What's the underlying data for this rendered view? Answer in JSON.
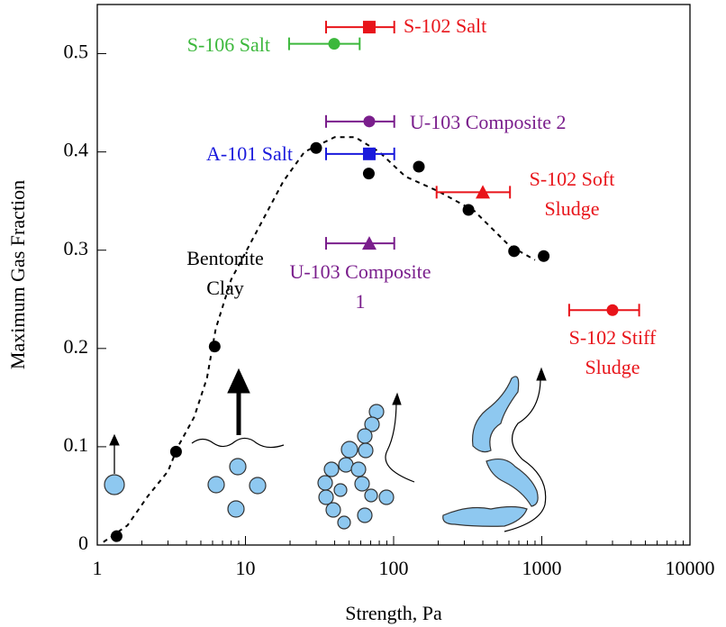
{
  "chart_data": {
    "type": "scatter",
    "x_label": "Strength, Pa",
    "y_label": "Maximum Gas Fraction",
    "xscale": "log",
    "xlim": [
      1,
      10000
    ],
    "ylim": [
      0,
      0.55
    ],
    "xticks": [
      1,
      10,
      100,
      1000,
      10000
    ],
    "yticks": [
      0,
      0.1,
      0.2,
      0.3,
      0.4,
      0.5
    ],
    "trend": {
      "color": "#000000",
      "dashed": true,
      "x": [
        1.1,
        1.6,
        2.2,
        3.0,
        3.5,
        4.5,
        5.5,
        6.3,
        8,
        12,
        18,
        25,
        40,
        55,
        80,
        120,
        200,
        350,
        600,
        900
      ],
      "values": [
        0.003,
        0.02,
        0.05,
        0.075,
        0.1,
        0.13,
        0.17,
        0.22,
        0.27,
        0.32,
        0.37,
        0.4,
        0.415,
        0.415,
        0.4,
        0.375,
        0.36,
        0.34,
        0.305,
        0.29
      ]
    },
    "series": [
      {
        "name": "Bentonite Clay",
        "color": "#000000",
        "marker": "circle",
        "x": [
          1.35,
          3.4,
          6.2,
          30,
          68,
          148,
          320,
          650,
          1030
        ],
        "values": [
          0.009,
          0.095,
          0.202,
          0.404,
          0.378,
          0.385,
          0.341,
          0.299,
          0.294
        ]
      },
      {
        "name": "S-102 Salt",
        "color": "#e8141a",
        "marker": "square",
        "x": [
          68.5
        ],
        "values": [
          0.527
        ],
        "xlow": [
          35
        ],
        "xhigh": [
          101
        ]
      },
      {
        "name": "S-106 Salt",
        "color": "#3cb83c",
        "marker": "circle",
        "x": [
          39.7
        ],
        "values": [
          0.51
        ],
        "xlow": [
          19.7
        ],
        "xhigh": [
          59
        ]
      },
      {
        "name": "U-103 Composite 2",
        "color": "#7a1e8c",
        "marker": "circle",
        "x": [
          68.5
        ],
        "values": [
          0.431
        ],
        "xlow": [
          35
        ],
        "xhigh": [
          101
        ]
      },
      {
        "name": "A-101 Salt",
        "color": "#1a1adc",
        "marker": "square",
        "x": [
          68.5
        ],
        "values": [
          0.398
        ],
        "xlow": [
          35
        ],
        "xhigh": [
          101
        ]
      },
      {
        "name": "S-102 Soft Sludge",
        "color": "#e8141a",
        "marker": "triangle",
        "x": [
          400
        ],
        "values": [
          0.359
        ],
        "xlow": [
          195
        ],
        "xhigh": [
          610
        ]
      },
      {
        "name": "U-103 Composite 1",
        "color": "#7a1e8c",
        "marker": "triangle",
        "x": [
          68.5
        ],
        "values": [
          0.307
        ],
        "xlow": [
          35
        ],
        "xhigh": [
          101
        ]
      },
      {
        "name": "S-102 Stiff Sludge",
        "color": "#e8141a",
        "marker": "circle",
        "x": [
          3000
        ],
        "values": [
          0.239
        ],
        "xlow": [
          1530
        ],
        "xhigh": [
          4540
        ]
      }
    ]
  }
}
